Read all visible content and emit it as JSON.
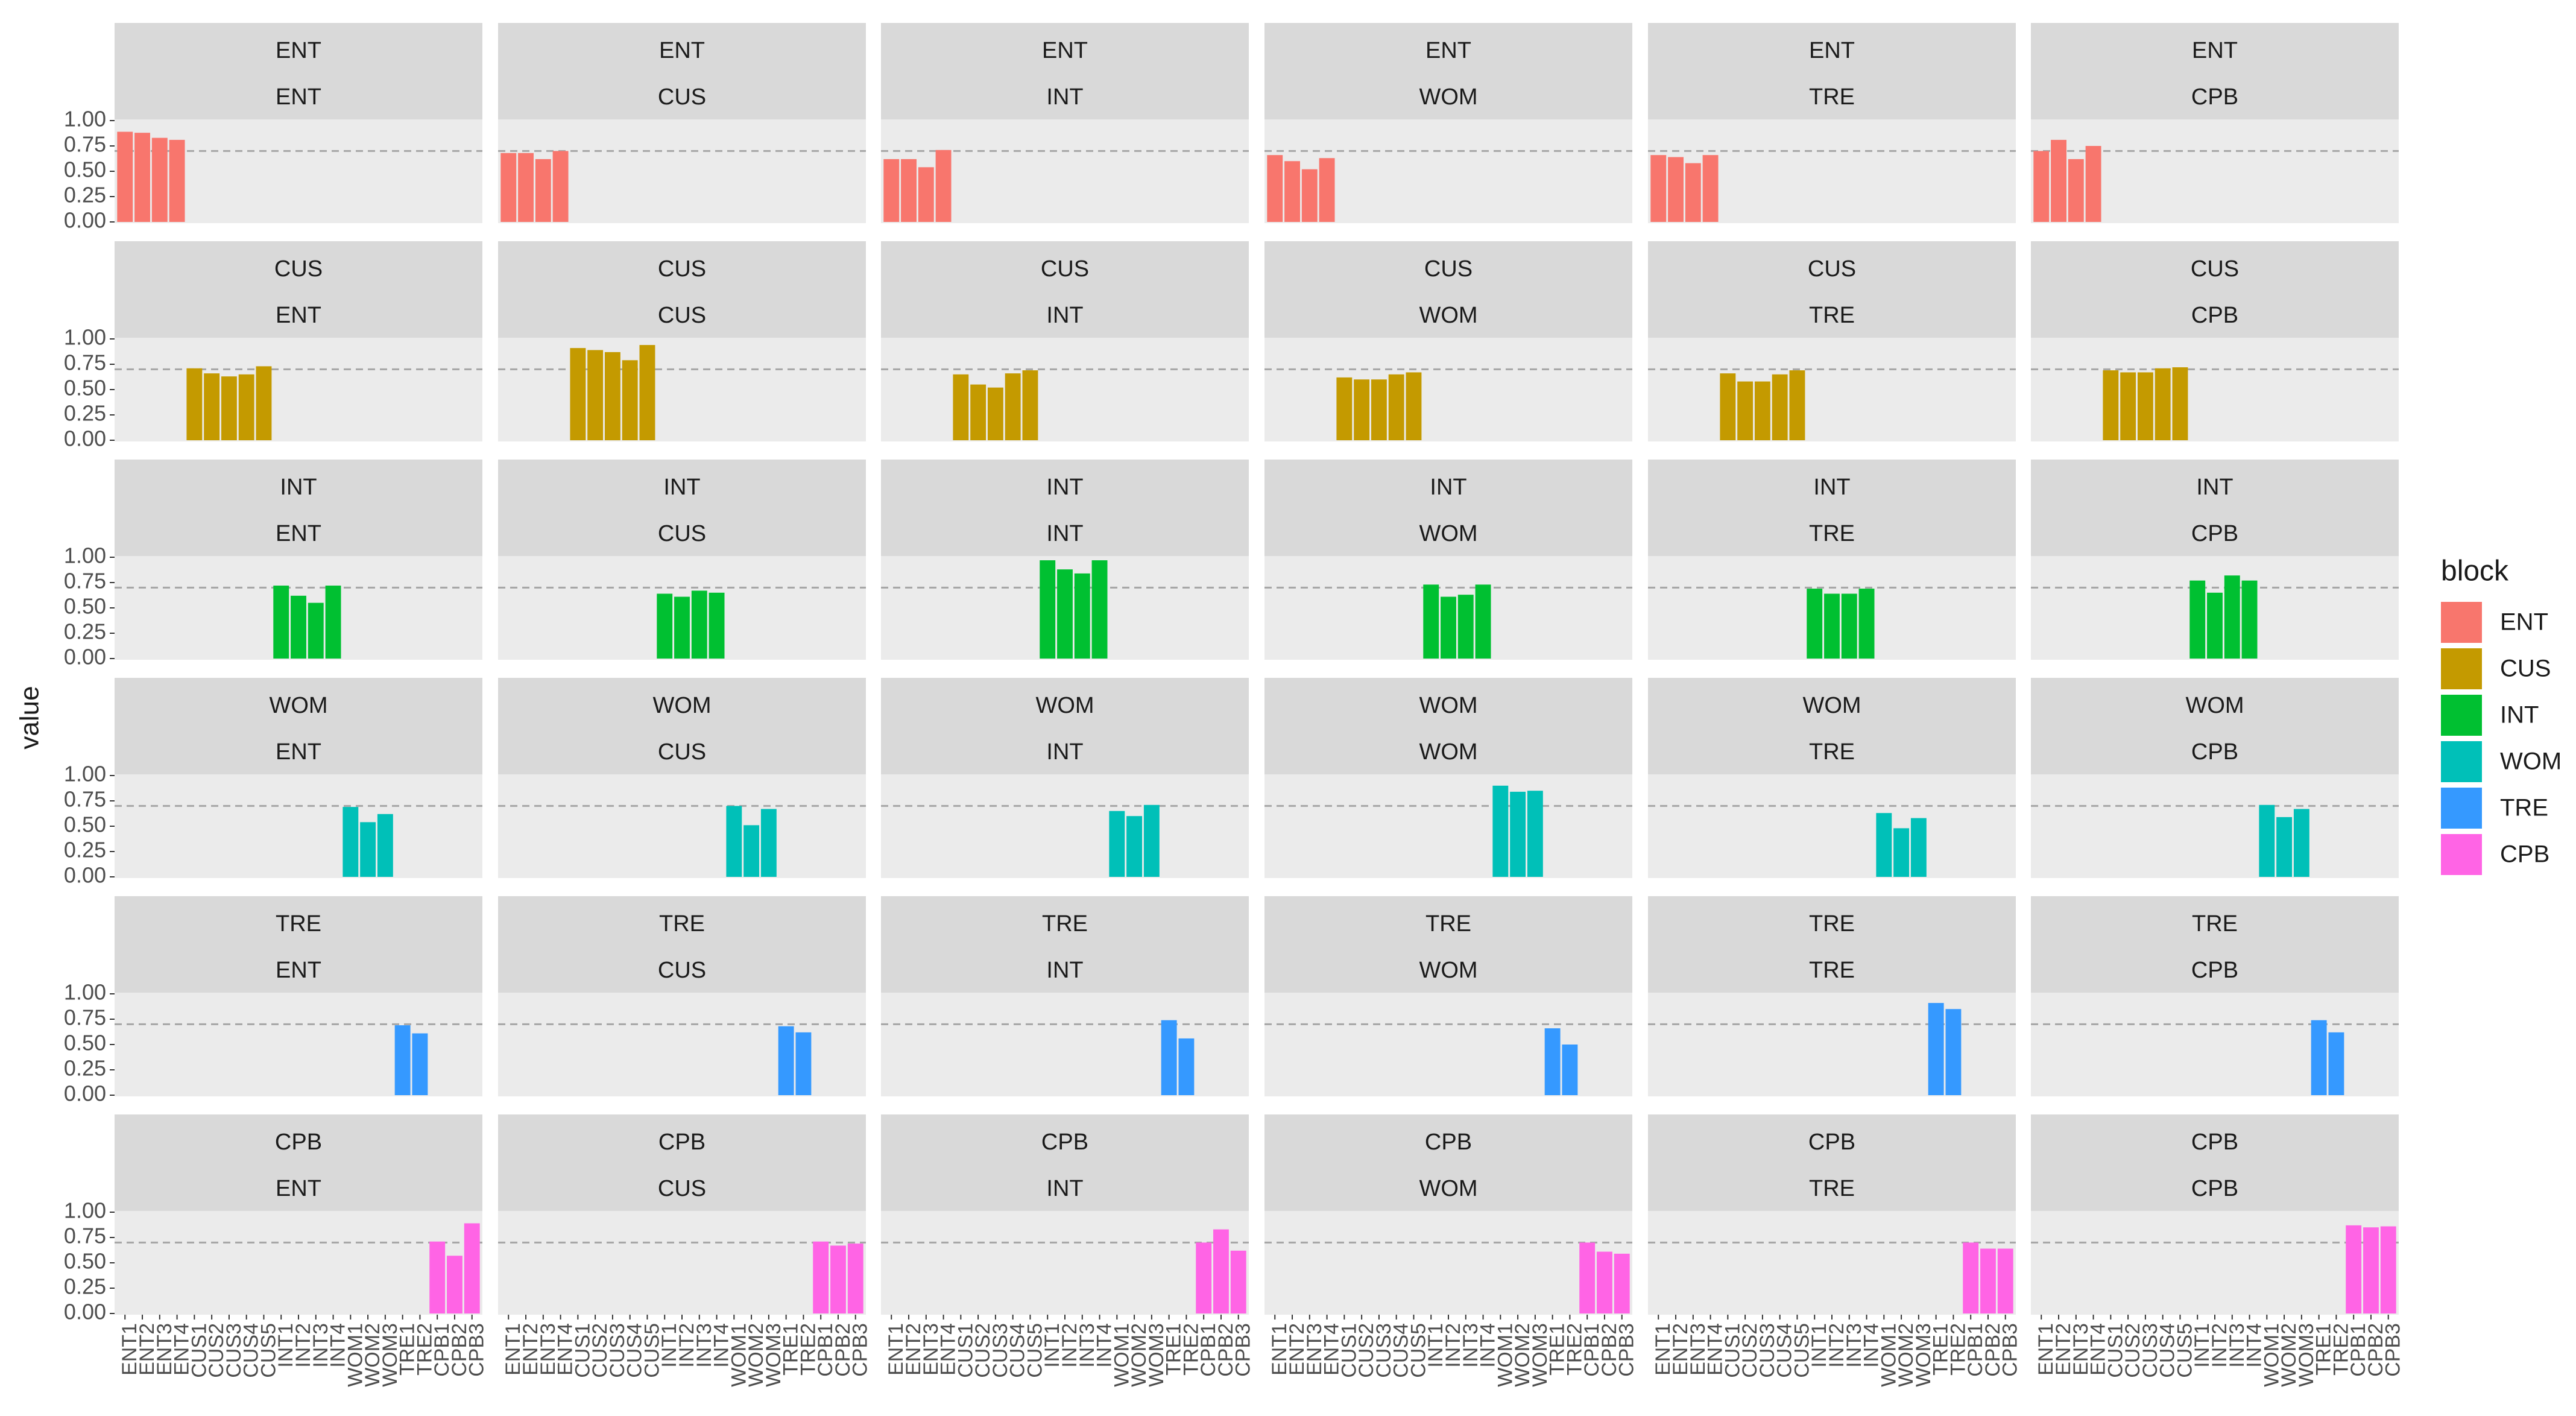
{
  "chart_data": {
    "type": "bar",
    "layout": "facet-grid",
    "ylabel": "value",
    "xlabel": "",
    "ylim": [
      0,
      1
    ],
    "yticks": [
      "0.00",
      "0.25",
      "0.50",
      "0.75",
      "1.00"
    ],
    "reference_line": 0.7,
    "categories": [
      "ENT1",
      "ENT2",
      "ENT3",
      "ENT4",
      "CUS1",
      "CUS2",
      "CUS3",
      "CUS4",
      "CUS5",
      "INT1",
      "INT2",
      "INT3",
      "INT4",
      "WOM1",
      "WOM2",
      "WOM3",
      "TRE1",
      "TRE2",
      "CPB1",
      "CPB2",
      "CPB3"
    ],
    "blocks": [
      {
        "name": "ENT",
        "color": "#F8766D",
        "items": [
          "ENT1",
          "ENT2",
          "ENT3",
          "ENT4"
        ]
      },
      {
        "name": "CUS",
        "color": "#C49A00",
        "items": [
          "CUS1",
          "CUS2",
          "CUS3",
          "CUS4",
          "CUS5"
        ]
      },
      {
        "name": "INT",
        "color": "#00C031",
        "items": [
          "INT1",
          "INT2",
          "INT3",
          "INT4"
        ]
      },
      {
        "name": "WOM",
        "color": "#00C0B8",
        "items": [
          "WOM1",
          "WOM2",
          "WOM3"
        ]
      },
      {
        "name": "TRE",
        "color": "#3599FF",
        "items": [
          "TRE1",
          "TRE2"
        ]
      },
      {
        "name": "CPB",
        "color": "#FF64E5",
        "items": [
          "CPB1",
          "CPB2",
          "CPB3"
        ]
      }
    ],
    "col_labels": [
      "ENT",
      "CUS",
      "INT",
      "WOM",
      "TRE",
      "CPB"
    ],
    "legend": {
      "title": "block",
      "position": "right",
      "entries": [
        "ENT",
        "CUS",
        "INT",
        "WOM",
        "TRE",
        "CPB"
      ]
    },
    "panels": [
      {
        "row": "ENT",
        "col": "ENT",
        "values": [
          0.89,
          0.88,
          0.83,
          0.81
        ]
      },
      {
        "row": "ENT",
        "col": "CUS",
        "values": [
          0.68,
          0.68,
          0.62,
          0.7
        ]
      },
      {
        "row": "ENT",
        "col": "INT",
        "values": [
          0.62,
          0.62,
          0.54,
          0.71
        ]
      },
      {
        "row": "ENT",
        "col": "WOM",
        "values": [
          0.66,
          0.6,
          0.52,
          0.63
        ]
      },
      {
        "row": "ENT",
        "col": "TRE",
        "values": [
          0.66,
          0.64,
          0.58,
          0.66
        ]
      },
      {
        "row": "ENT",
        "col": "CPB",
        "values": [
          0.7,
          0.81,
          0.62,
          0.75
        ]
      },
      {
        "row": "CUS",
        "col": "ENT",
        "values": [
          0.71,
          0.66,
          0.63,
          0.65,
          0.73
        ]
      },
      {
        "row": "CUS",
        "col": "CUS",
        "values": [
          0.91,
          0.89,
          0.87,
          0.79,
          0.94
        ]
      },
      {
        "row": "CUS",
        "col": "INT",
        "values": [
          0.65,
          0.55,
          0.52,
          0.66,
          0.69
        ]
      },
      {
        "row": "CUS",
        "col": "WOM",
        "values": [
          0.62,
          0.6,
          0.6,
          0.65,
          0.67
        ]
      },
      {
        "row": "CUS",
        "col": "TRE",
        "values": [
          0.66,
          0.58,
          0.58,
          0.65,
          0.69
        ]
      },
      {
        "row": "CUS",
        "col": "CPB",
        "values": [
          0.69,
          0.67,
          0.67,
          0.71,
          0.72
        ]
      },
      {
        "row": "INT",
        "col": "ENT",
        "values": [
          0.72,
          0.62,
          0.55,
          0.72
        ]
      },
      {
        "row": "INT",
        "col": "CUS",
        "values": [
          0.64,
          0.61,
          0.67,
          0.65
        ]
      },
      {
        "row": "INT",
        "col": "INT",
        "values": [
          0.97,
          0.88,
          0.84,
          0.97
        ]
      },
      {
        "row": "INT",
        "col": "WOM",
        "values": [
          0.73,
          0.61,
          0.63,
          0.73
        ]
      },
      {
        "row": "INT",
        "col": "TRE",
        "values": [
          0.69,
          0.64,
          0.64,
          0.69
        ]
      },
      {
        "row": "INT",
        "col": "CPB",
        "values": [
          0.77,
          0.65,
          0.82,
          0.77
        ]
      },
      {
        "row": "WOM",
        "col": "ENT",
        "values": [
          0.69,
          0.54,
          0.62
        ]
      },
      {
        "row": "WOM",
        "col": "CUS",
        "values": [
          0.7,
          0.51,
          0.67
        ]
      },
      {
        "row": "WOM",
        "col": "INT",
        "values": [
          0.65,
          0.6,
          0.71
        ]
      },
      {
        "row": "WOM",
        "col": "WOM",
        "values": [
          0.9,
          0.84,
          0.85
        ]
      },
      {
        "row": "WOM",
        "col": "TRE",
        "values": [
          0.63,
          0.48,
          0.58
        ]
      },
      {
        "row": "WOM",
        "col": "CPB",
        "values": [
          0.71,
          0.59,
          0.67
        ]
      },
      {
        "row": "TRE",
        "col": "ENT",
        "values": [
          0.69,
          0.61
        ]
      },
      {
        "row": "TRE",
        "col": "CUS",
        "values": [
          0.68,
          0.62
        ]
      },
      {
        "row": "TRE",
        "col": "INT",
        "values": [
          0.74,
          0.56
        ]
      },
      {
        "row": "TRE",
        "col": "WOM",
        "values": [
          0.66,
          0.5
        ]
      },
      {
        "row": "TRE",
        "col": "TRE",
        "values": [
          0.91,
          0.85
        ]
      },
      {
        "row": "TRE",
        "col": "CPB",
        "values": [
          0.74,
          0.62
        ]
      },
      {
        "row": "CPB",
        "col": "ENT",
        "values": [
          0.71,
          0.57,
          0.89
        ]
      },
      {
        "row": "CPB",
        "col": "CUS",
        "values": [
          0.71,
          0.67,
          0.69
        ]
      },
      {
        "row": "CPB",
        "col": "INT",
        "values": [
          0.7,
          0.83,
          0.62
        ]
      },
      {
        "row": "CPB",
        "col": "WOM",
        "values": [
          0.7,
          0.61,
          0.59
        ]
      },
      {
        "row": "CPB",
        "col": "TRE",
        "values": [
          0.7,
          0.64,
          0.64
        ]
      },
      {
        "row": "CPB",
        "col": "CPB",
        "values": [
          0.87,
          0.85,
          0.86
        ]
      }
    ]
  }
}
